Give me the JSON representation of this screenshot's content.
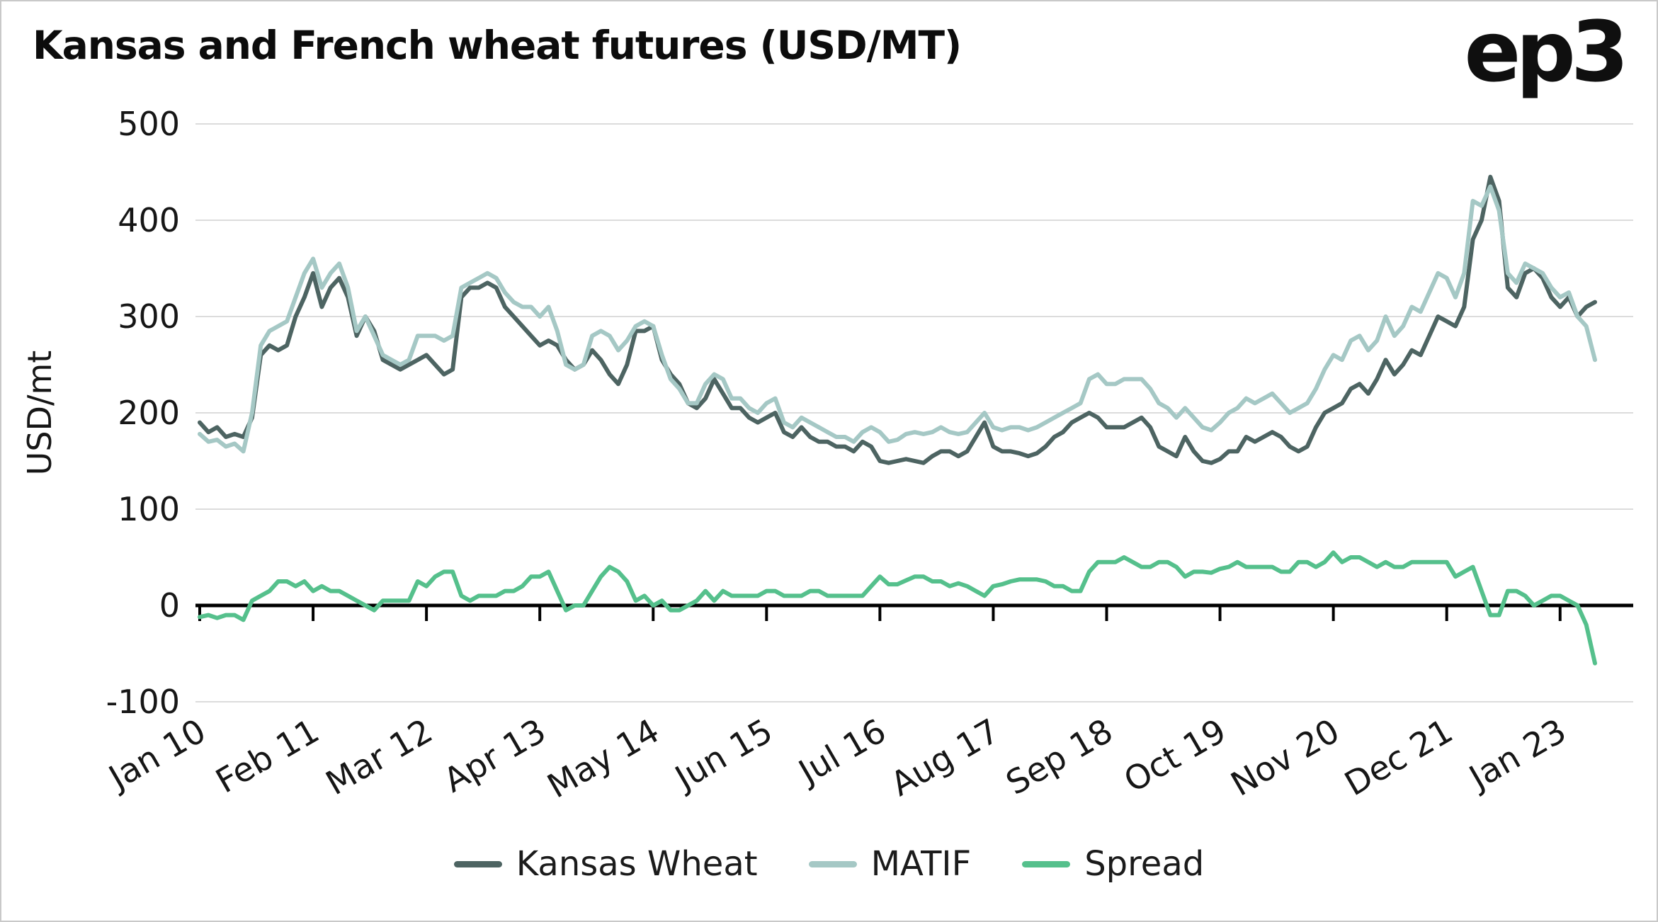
{
  "header": {
    "title": "Kansas and French wheat futures (USD/MT)",
    "logo": "ep3"
  },
  "colors": {
    "kansas_wheat": "#4d6462",
    "matif": "#a5c8c5",
    "spread": "#55c08c",
    "gridline": "#dcdcdc",
    "zero_line": "#000000",
    "tick_text": "#161616"
  },
  "chart_data": {
    "type": "line",
    "title": "Kansas and French wheat futures (USD/MT)",
    "xlabel": "",
    "ylabel": "USD/mt",
    "ylim": [
      -100,
      500
    ],
    "grid": "horizontal",
    "legend_position": "bottom",
    "y_ticks": [
      500,
      400,
      300,
      200,
      100,
      0,
      -100
    ],
    "x_tick_labels": [
      "Jan 10",
      "Feb 11",
      "Mar 12",
      "Apr 13",
      "May 14",
      "Jun 15",
      "Jul 16",
      "Aug 17",
      "Sep 18",
      "Oct 19",
      "Nov 20",
      "Dec 21",
      "Jan 23"
    ],
    "x_tick_positions": [
      0,
      13,
      26,
      39,
      52,
      65,
      78,
      91,
      104,
      117,
      130,
      143,
      156
    ],
    "series": [
      {
        "name": "Kansas Wheat",
        "color": "#4d6462",
        "values": [
          190,
          180,
          185,
          175,
          178,
          175,
          195,
          260,
          270,
          265,
          270,
          300,
          320,
          345,
          310,
          330,
          340,
          320,
          280,
          300,
          285,
          255,
          250,
          245,
          250,
          255,
          260,
          250,
          240,
          245,
          320,
          330,
          330,
          335,
          330,
          310,
          300,
          290,
          280,
          270,
          275,
          270,
          255,
          245,
          250,
          265,
          255,
          240,
          230,
          250,
          285,
          285,
          290,
          255,
          240,
          230,
          210,
          205,
          215,
          235,
          220,
          205,
          205,
          195,
          190,
          195,
          200,
          180,
          175,
          185,
          175,
          170,
          170,
          165,
          165,
          160,
          170,
          165,
          150,
          148,
          150,
          152,
          150,
          148,
          155,
          160,
          160,
          155,
          160,
          175,
          190,
          165,
          160,
          160,
          158,
          155,
          158,
          165,
          175,
          180,
          190,
          195,
          200,
          195,
          185,
          185,
          185,
          190,
          195,
          185,
          165,
          160,
          155,
          175,
          160,
          150,
          148,
          152,
          160,
          160,
          175,
          170,
          175,
          180,
          175,
          165,
          160,
          165,
          185,
          200,
          205,
          210,
          225,
          230,
          220,
          235,
          255,
          240,
          250,
          265,
          260,
          280,
          300,
          295,
          290,
          310,
          380,
          400,
          445,
          420,
          330,
          320,
          345,
          350,
          340,
          320,
          310,
          320,
          300,
          310,
          315
        ]
      },
      {
        "name": "MATIF",
        "color": "#a5c8c5",
        "values": [
          178,
          170,
          172,
          165,
          168,
          160,
          200,
          270,
          285,
          290,
          295,
          320,
          345,
          360,
          330,
          345,
          355,
          330,
          285,
          300,
          280,
          260,
          255,
          250,
          255,
          280,
          280,
          280,
          275,
          280,
          330,
          335,
          340,
          345,
          340,
          325,
          315,
          310,
          310,
          300,
          310,
          285,
          250,
          245,
          250,
          280,
          285,
          280,
          265,
          275,
          290,
          295,
          290,
          260,
          235,
          225,
          210,
          210,
          230,
          240,
          235,
          215,
          215,
          205,
          200,
          210,
          215,
          190,
          185,
          195,
          190,
          185,
          180,
          175,
          175,
          170,
          180,
          185,
          180,
          170,
          172,
          178,
          180,
          178,
          180,
          185,
          180,
          178,
          180,
          190,
          200,
          185,
          182,
          185,
          185,
          182,
          185,
          190,
          195,
          200,
          205,
          210,
          235,
          240,
          230,
          230,
          235,
          235,
          235,
          225,
          210,
          205,
          195,
          205,
          195,
          185,
          182,
          190,
          200,
          205,
          215,
          210,
          215,
          220,
          210,
          200,
          205,
          210,
          225,
          245,
          260,
          255,
          275,
          280,
          265,
          275,
          300,
          280,
          290,
          310,
          305,
          325,
          345,
          340,
          320,
          345,
          420,
          415,
          435,
          410,
          345,
          335,
          355,
          350,
          345,
          330,
          320,
          325,
          300,
          290,
          255
        ]
      },
      {
        "name": "Spread",
        "color": "#55c08c",
        "values": [
          -12,
          -10,
          -13,
          -10,
          -10,
          -15,
          5,
          10,
          15,
          25,
          25,
          20,
          25,
          15,
          20,
          15,
          15,
          10,
          5,
          0,
          -5,
          5,
          5,
          5,
          5,
          25,
          20,
          30,
          35,
          35,
          10,
          5,
          10,
          10,
          10,
          15,
          15,
          20,
          30,
          30,
          35,
          15,
          -5,
          0,
          0,
          15,
          30,
          40,
          35,
          25,
          5,
          10,
          0,
          5,
          -5,
          -5,
          0,
          5,
          15,
          5,
          15,
          10,
          10,
          10,
          10,
          15,
          15,
          10,
          10,
          10,
          15,
          15,
          10,
          10,
          10,
          10,
          10,
          20,
          30,
          22,
          22,
          26,
          30,
          30,
          25,
          25,
          20,
          23,
          20,
          15,
          10,
          20,
          22,
          25,
          27,
          27,
          27,
          25,
          20,
          20,
          15,
          15,
          35,
          45,
          45,
          45,
          50,
          45,
          40,
          40,
          45,
          45,
          40,
          30,
          35,
          35,
          34,
          38,
          40,
          45,
          40,
          40,
          40,
          40,
          35,
          35,
          45,
          45,
          40,
          45,
          55,
          45,
          50,
          50,
          45,
          40,
          45,
          40,
          40,
          45,
          45,
          45,
          45,
          45,
          30,
          35,
          40,
          15,
          -10,
          -10,
          15,
          15,
          10,
          0,
          5,
          10,
          10,
          5,
          0,
          -20,
          -60
        ]
      }
    ]
  }
}
